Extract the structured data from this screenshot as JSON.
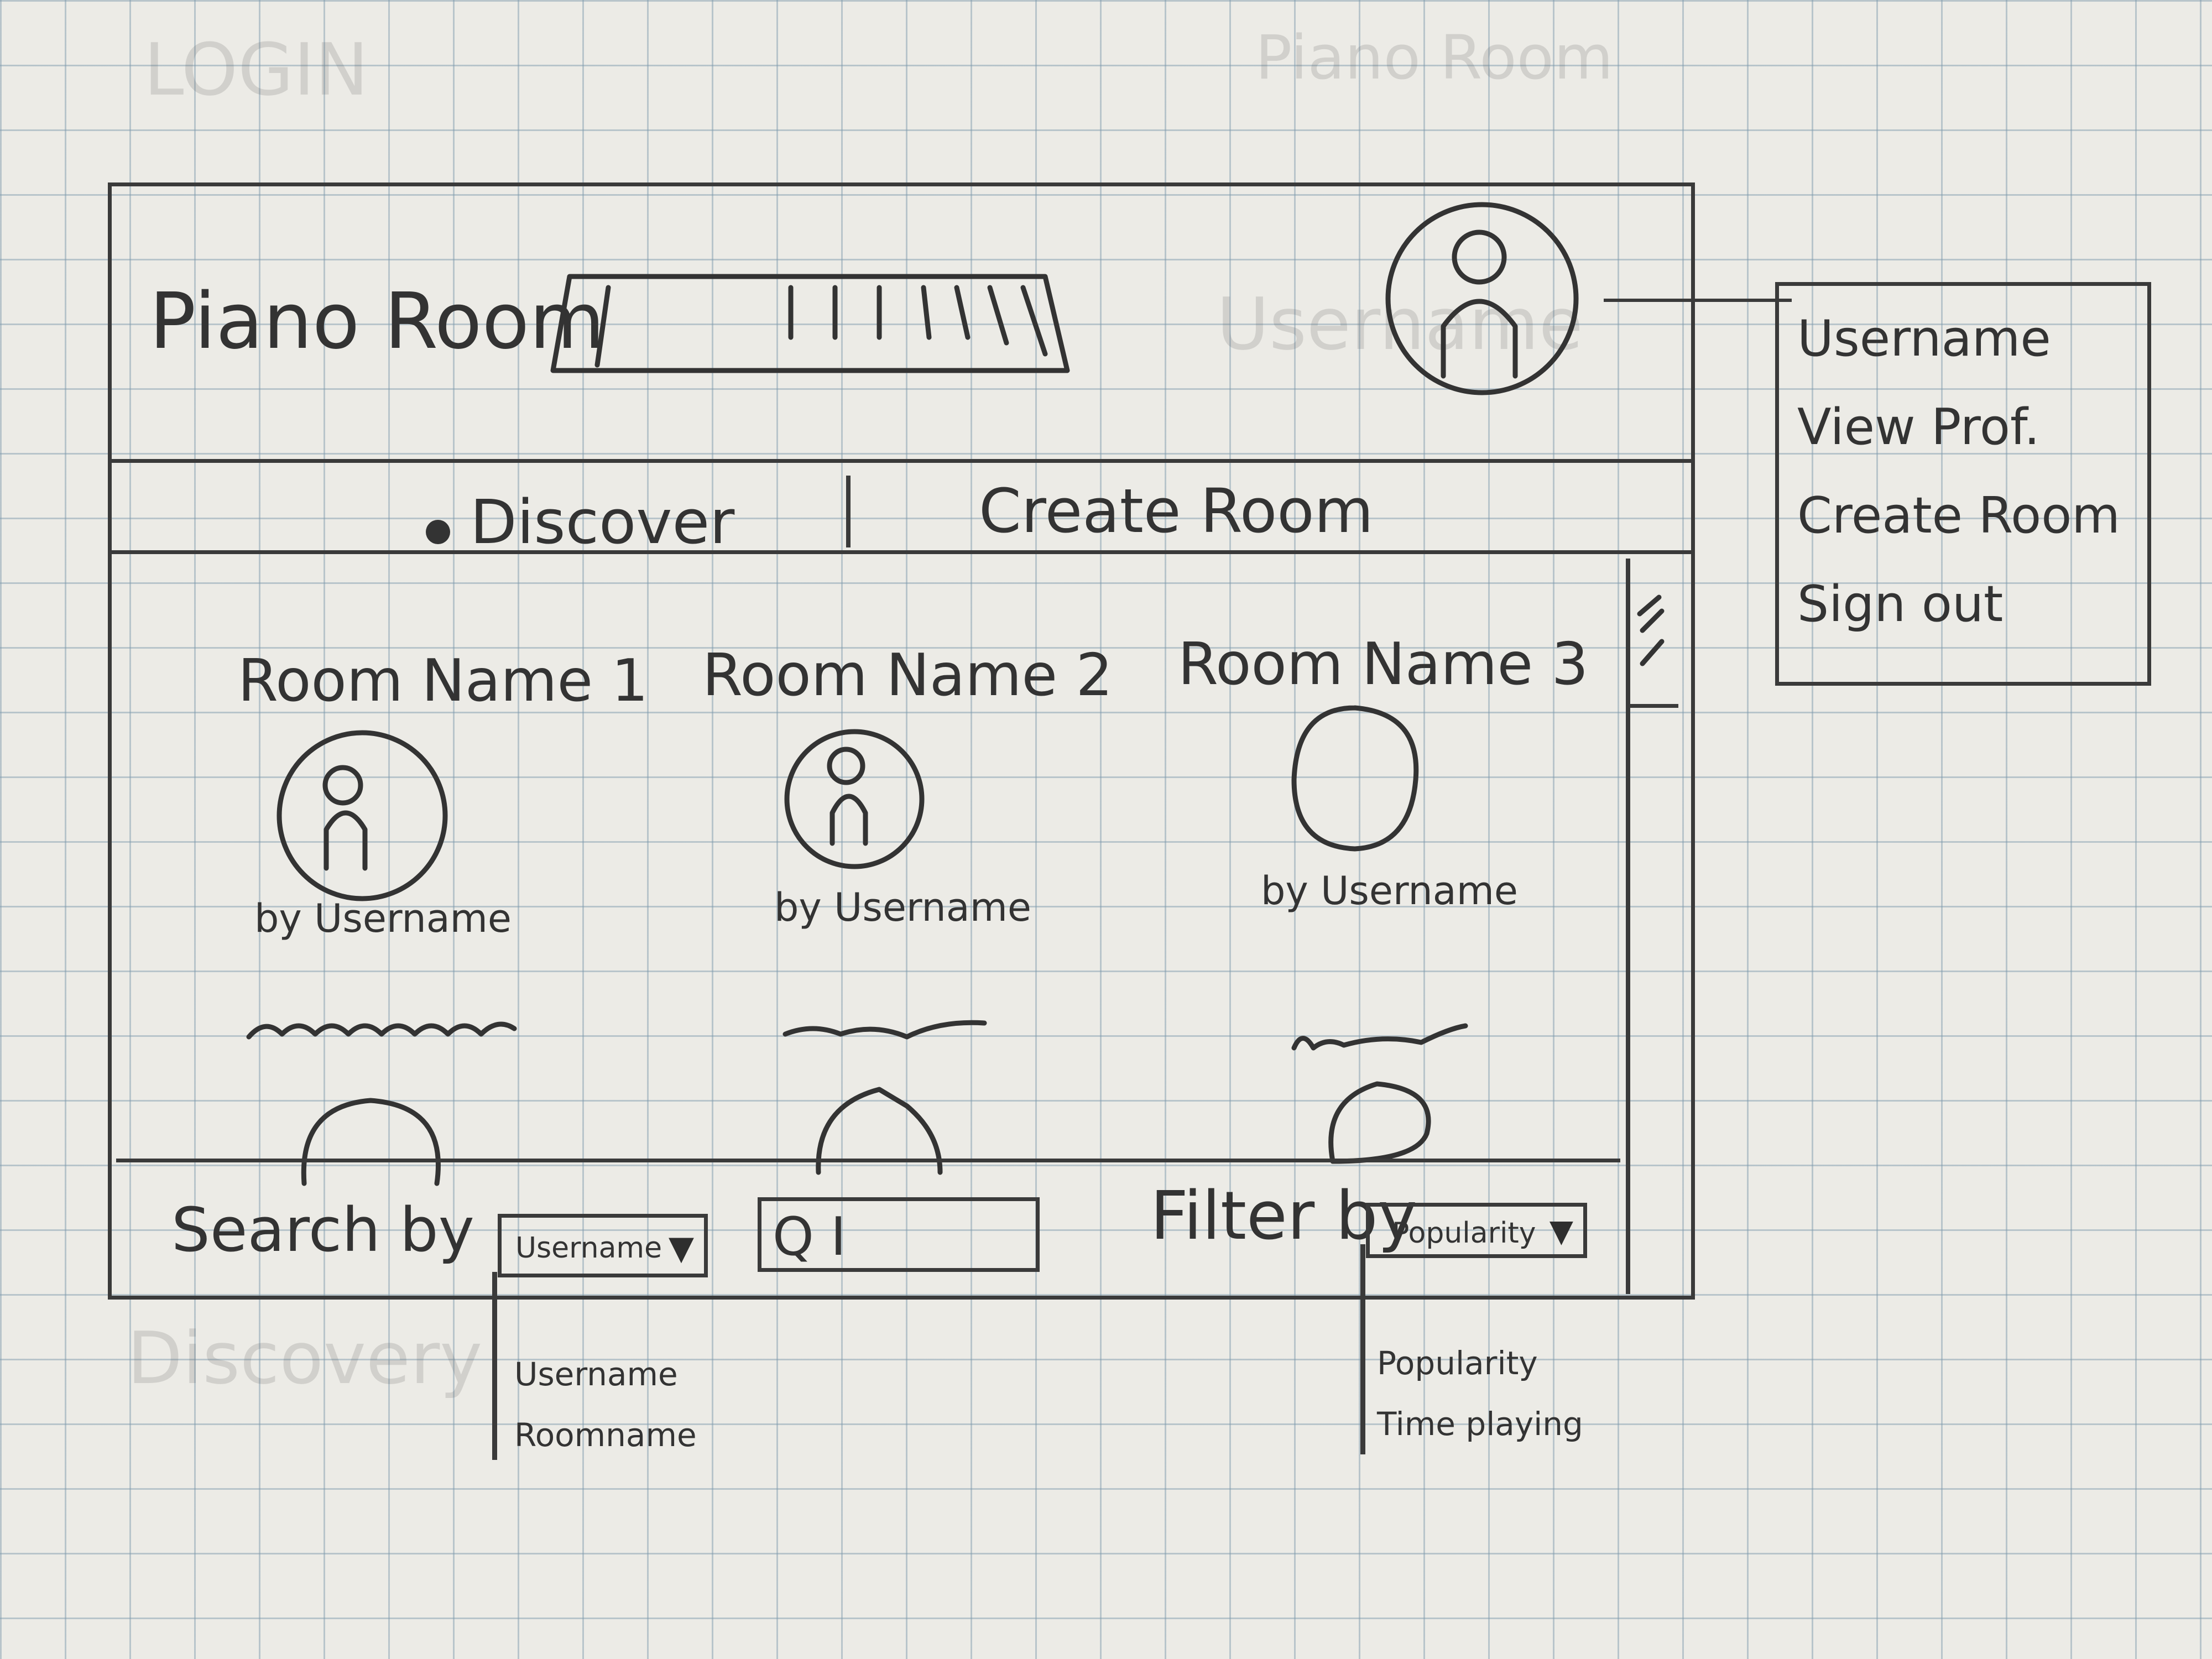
{
  "faint": {
    "top_left": "LOGIN",
    "top_right": "Piano Room",
    "header_ghost": "Username",
    "bottom_left": "Discovery"
  },
  "header": {
    "app_title": "Piano Room"
  },
  "nav": {
    "tab_discover": "Discover",
    "tab_create_room": "Create Room"
  },
  "rooms": [
    {
      "name": "Room Name 1",
      "by": "by Username"
    },
    {
      "name": "Room Name 2",
      "by": "by Username"
    },
    {
      "name": "Room Name 3",
      "by": "by Username"
    }
  ],
  "footer": {
    "search_label": "Search by",
    "search_select_value": "Username",
    "search_select_options": [
      "Username",
      "Roomname"
    ],
    "search_input_value": "Q I",
    "filter_label": "Filter by",
    "filter_select_value": "Popularity",
    "filter_select_options": [
      "Popularity",
      "Time playing"
    ]
  },
  "profile_menu": {
    "items": [
      "Username",
      "View Prof.",
      "Create Room",
      "Sign out"
    ]
  },
  "icons": {
    "avatar": "user-avatar-icon",
    "dropdown": "triangle-down-icon",
    "search": "magnifier-icon"
  }
}
